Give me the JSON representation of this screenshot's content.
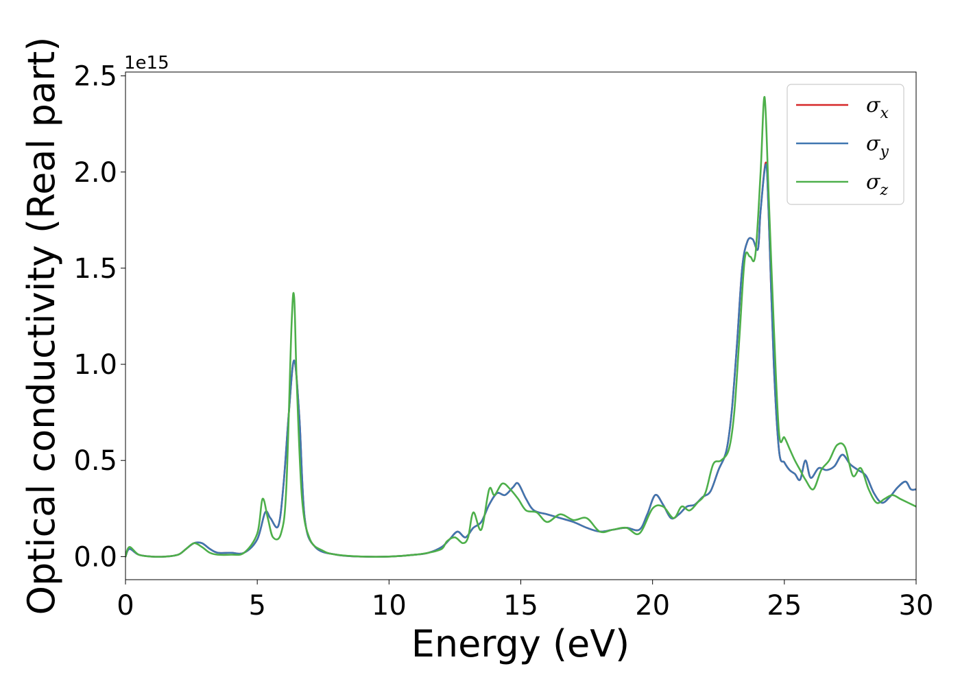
{
  "chart_data": {
    "type": "line",
    "xlabel": "Energy (eV)",
    "ylabel": "Optical conductivity (Real part)",
    "y_offset_text": "1e15",
    "xlim": [
      0,
      30
    ],
    "ylim": [
      -0.12,
      2.52
    ],
    "x_ticks": [
      0,
      5,
      10,
      15,
      20,
      25,
      30
    ],
    "x_tick_labels": [
      "0",
      "5",
      "10",
      "15",
      "20",
      "25",
      "30"
    ],
    "y_ticks": [
      0.0,
      0.5,
      1.0,
      1.5,
      2.0,
      2.5
    ],
    "y_tick_labels": [
      "0.0",
      "0.5",
      "1.0",
      "1.5",
      "2.0",
      "2.5"
    ],
    "grid": false,
    "legend_position": "top-right",
    "series": [
      {
        "name": "σx",
        "legend_symbol": "σ",
        "legend_subscript": "x",
        "color": "#d62728",
        "x": [
          0,
          0.15,
          0.5,
          1,
          1.5,
          2,
          2.3,
          2.6,
          2.9,
          3.2,
          3.5,
          4,
          4.5,
          5,
          5.3,
          5.5,
          5.8,
          6.0,
          6.2,
          6.4,
          6.6,
          6.8,
          7.2,
          8,
          9,
          10,
          11,
          11.5,
          12,
          12.3,
          12.6,
          12.9,
          13.2,
          13.5,
          13.8,
          14.1,
          14.4,
          14.7,
          14.9,
          15.2,
          15.5,
          16,
          16.5,
          17,
          17.5,
          18,
          18.5,
          19,
          19.5,
          19.8,
          20.1,
          20.4,
          20.7,
          21,
          21.3,
          21.6,
          21.9,
          22.2,
          22.5,
          22.8,
          23.0,
          23.2,
          23.4,
          23.6,
          23.8,
          24.0,
          24.1,
          24.3,
          24.4,
          24.6,
          24.8,
          25.0,
          25.2,
          25.4,
          25.6,
          25.8,
          26.0,
          26.3,
          26.6,
          26.9,
          27.2,
          27.5,
          27.8,
          28.1,
          28.4,
          28.7,
          29.0,
          29.3,
          29.6,
          29.8,
          30
        ],
        "y": [
          0.0,
          0.04,
          0.01,
          0.0,
          0.0,
          0.01,
          0.04,
          0.07,
          0.07,
          0.04,
          0.02,
          0.02,
          0.02,
          0.09,
          0.23,
          0.2,
          0.16,
          0.38,
          0.75,
          1.02,
          0.72,
          0.2,
          0.05,
          0.01,
          0.0,
          0.0,
          0.01,
          0.02,
          0.05,
          0.09,
          0.13,
          0.1,
          0.15,
          0.18,
          0.27,
          0.33,
          0.32,
          0.36,
          0.38,
          0.3,
          0.24,
          0.22,
          0.2,
          0.18,
          0.15,
          0.13,
          0.14,
          0.15,
          0.14,
          0.22,
          0.32,
          0.27,
          0.2,
          0.22,
          0.26,
          0.27,
          0.31,
          0.34,
          0.45,
          0.55,
          0.75,
          1.1,
          1.5,
          1.64,
          1.65,
          1.6,
          1.8,
          2.05,
          1.8,
          1.0,
          0.55,
          0.49,
          0.45,
          0.43,
          0.4,
          0.5,
          0.41,
          0.46,
          0.45,
          0.47,
          0.53,
          0.48,
          0.45,
          0.42,
          0.33,
          0.28,
          0.31,
          0.36,
          0.39,
          0.35,
          0.35
        ]
      },
      {
        "name": "σy",
        "legend_symbol": "σ",
        "legend_subscript": "y",
        "color": "#3f76b0",
        "x": [
          0,
          0.15,
          0.5,
          1,
          1.5,
          2,
          2.3,
          2.6,
          2.9,
          3.2,
          3.5,
          4,
          4.5,
          5,
          5.3,
          5.5,
          5.8,
          6.0,
          6.2,
          6.4,
          6.6,
          6.8,
          7.2,
          8,
          9,
          10,
          11,
          11.5,
          12,
          12.3,
          12.6,
          12.9,
          13.2,
          13.5,
          13.8,
          14.1,
          14.4,
          14.7,
          14.9,
          15.2,
          15.5,
          16,
          16.5,
          17,
          17.5,
          18,
          18.5,
          19,
          19.5,
          19.8,
          20.1,
          20.4,
          20.7,
          21,
          21.3,
          21.6,
          21.9,
          22.2,
          22.5,
          22.8,
          23.0,
          23.2,
          23.4,
          23.6,
          23.8,
          24.0,
          24.1,
          24.3,
          24.4,
          24.6,
          24.8,
          25.0,
          25.2,
          25.4,
          25.6,
          25.8,
          26.0,
          26.3,
          26.6,
          26.9,
          27.2,
          27.5,
          27.8,
          28.1,
          28.4,
          28.7,
          29.0,
          29.3,
          29.6,
          29.8,
          30
        ],
        "y": [
          0.0,
          0.04,
          0.01,
          0.0,
          0.0,
          0.01,
          0.04,
          0.07,
          0.07,
          0.04,
          0.02,
          0.02,
          0.02,
          0.09,
          0.23,
          0.2,
          0.16,
          0.38,
          0.75,
          1.02,
          0.72,
          0.2,
          0.05,
          0.01,
          0.0,
          0.0,
          0.01,
          0.02,
          0.05,
          0.09,
          0.13,
          0.1,
          0.15,
          0.18,
          0.27,
          0.33,
          0.32,
          0.36,
          0.38,
          0.3,
          0.24,
          0.22,
          0.2,
          0.18,
          0.15,
          0.13,
          0.14,
          0.15,
          0.14,
          0.22,
          0.32,
          0.27,
          0.2,
          0.22,
          0.26,
          0.27,
          0.31,
          0.34,
          0.45,
          0.55,
          0.75,
          1.1,
          1.5,
          1.64,
          1.65,
          1.6,
          1.8,
          2.04,
          1.8,
          1.0,
          0.55,
          0.49,
          0.45,
          0.43,
          0.4,
          0.5,
          0.41,
          0.46,
          0.45,
          0.47,
          0.53,
          0.48,
          0.45,
          0.42,
          0.33,
          0.28,
          0.31,
          0.36,
          0.39,
          0.35,
          0.35
        ]
      },
      {
        "name": "σz",
        "legend_symbol": "σ",
        "legend_subscript": "z",
        "color": "#4daf4a",
        "x": [
          0,
          0.15,
          0.5,
          1,
          1.5,
          2,
          2.3,
          2.6,
          2.9,
          3.2,
          3.5,
          4,
          4.5,
          5,
          5.2,
          5.4,
          5.6,
          5.9,
          6.1,
          6.3,
          6.4,
          6.5,
          6.7,
          7.0,
          7.5,
          8,
          9,
          10,
          11,
          11.5,
          12,
          12.2,
          12.5,
          12.8,
          13.0,
          13.2,
          13.5,
          13.8,
          14.0,
          14.3,
          14.6,
          14.9,
          15.2,
          15.6,
          16,
          16.5,
          17,
          17.5,
          18,
          18.5,
          19,
          19.5,
          20,
          20.4,
          20.8,
          21.1,
          21.4,
          21.7,
          22.0,
          22.3,
          22.6,
          22.9,
          23.1,
          23.3,
          23.5,
          23.7,
          23.9,
          24.1,
          24.25,
          24.4,
          24.6,
          24.8,
          25.0,
          25.2,
          25.4,
          25.6,
          25.8,
          26.1,
          26.4,
          26.7,
          27.0,
          27.3,
          27.6,
          27.9,
          28.2,
          28.5,
          28.8,
          29.1,
          29.4,
          29.7,
          30
        ],
        "y": [
          0.0,
          0.05,
          0.01,
          0.0,
          0.0,
          0.01,
          0.04,
          0.07,
          0.05,
          0.02,
          0.01,
          0.01,
          0.02,
          0.12,
          0.3,
          0.2,
          0.1,
          0.12,
          0.35,
          1.2,
          1.35,
          0.9,
          0.3,
          0.09,
          0.03,
          0.01,
          0.0,
          0.0,
          0.01,
          0.02,
          0.04,
          0.08,
          0.1,
          0.07,
          0.1,
          0.23,
          0.14,
          0.35,
          0.32,
          0.38,
          0.35,
          0.3,
          0.24,
          0.23,
          0.18,
          0.22,
          0.19,
          0.2,
          0.13,
          0.14,
          0.15,
          0.12,
          0.25,
          0.26,
          0.2,
          0.26,
          0.24,
          0.28,
          0.33,
          0.48,
          0.5,
          0.56,
          0.75,
          1.15,
          1.55,
          1.56,
          1.57,
          2.0,
          2.39,
          1.9,
          1.2,
          0.64,
          0.62,
          0.56,
          0.5,
          0.45,
          0.4,
          0.35,
          0.45,
          0.5,
          0.58,
          0.57,
          0.42,
          0.46,
          0.35,
          0.28,
          0.3,
          0.32,
          0.3,
          0.28,
          0.26
        ]
      }
    ]
  }
}
